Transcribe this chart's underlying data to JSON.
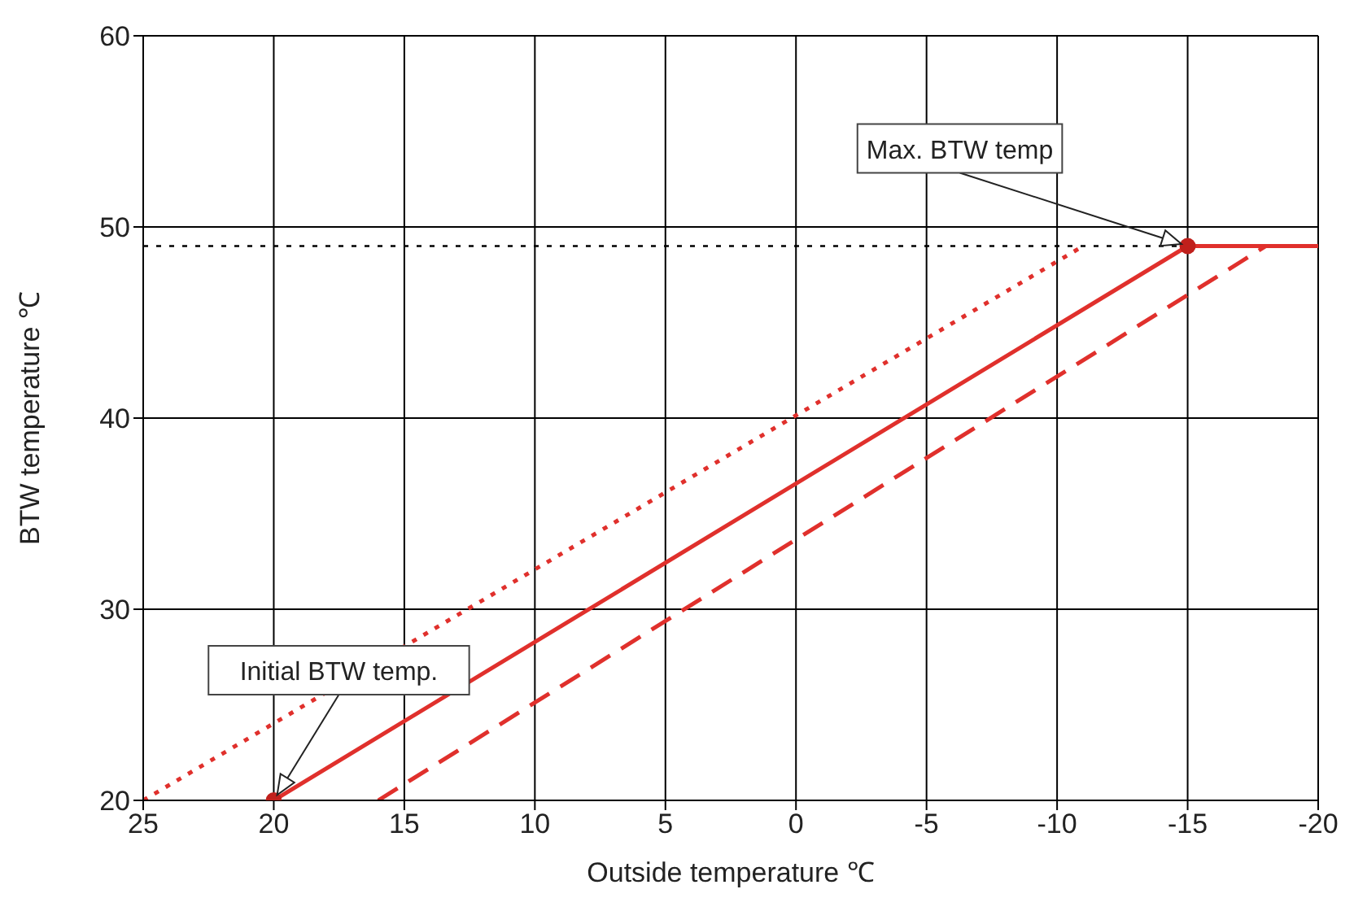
{
  "chart_data": {
    "type": "line",
    "xlabel": "Outside temperature ℃",
    "ylabel": "BTW temperature ℃",
    "xlim": [
      25,
      -20
    ],
    "xticks": [
      25,
      20,
      15,
      10,
      5,
      0,
      -5,
      -10,
      -15,
      -20
    ],
    "ylim": [
      20,
      60
    ],
    "yticks": [
      20,
      30,
      40,
      50,
      60
    ],
    "grid": true,
    "series": [
      {
        "color": "#e0302c",
        "line_style": "solid",
        "x": [
          20,
          -15,
          -20
        ],
        "values": [
          20,
          49,
          49
        ]
      },
      {
        "color": "#e0302c",
        "line_style": "dotted",
        "x": [
          25,
          -11
        ],
        "values": [
          20,
          49
        ]
      },
      {
        "color": "#e0302c",
        "line_style": "dashed",
        "x": [
          16,
          -18
        ],
        "values": [
          20,
          49
        ]
      },
      {
        "type": "scatter",
        "color": "#c0201c",
        "marker": "circle",
        "x": [
          20,
          -15
        ],
        "values": [
          20,
          49
        ]
      }
    ],
    "ref_lines": [
      {
        "axis": "y",
        "value": 49,
        "color": "#000000",
        "line_style": "dotted"
      }
    ],
    "annotations": [
      "Initial BTW temp.",
      "Max. BTW temp"
    ]
  }
}
